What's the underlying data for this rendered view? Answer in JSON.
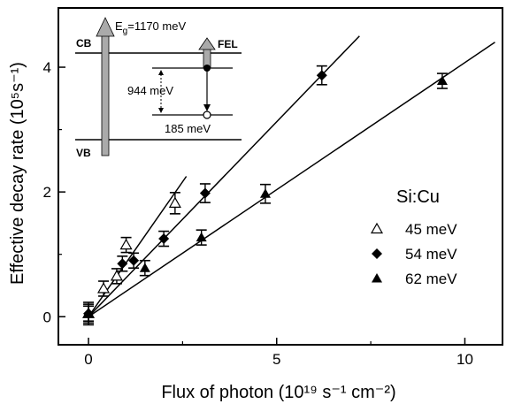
{
  "chart_data": {
    "type": "scatter",
    "xlabel": "Flux of photon (10¹⁹ s⁻¹ cm⁻²)",
    "ylabel": "Effective decay rate (10⁵s⁻¹)",
    "xlim": [
      -0.8,
      11
    ],
    "ylim": [
      -0.45,
      4.95
    ],
    "xticks": [
      0,
      5,
      10
    ],
    "yticks": [
      0,
      2,
      4
    ],
    "legend_title": "Si:Cu",
    "legend_position": "right",
    "series": [
      {
        "name": "45 meV",
        "marker": "triangle-open",
        "x": [
          0.0,
          0.4,
          0.75,
          1.0,
          2.3
        ],
        "y": [
          0.05,
          0.45,
          0.65,
          1.15,
          1.82
        ],
        "err": [
          0.18,
          0.12,
          0.12,
          0.12,
          0.17
        ],
        "fit": {
          "x0": 0,
          "y0": 0.0,
          "x1": 2.6,
          "y1": 2.25
        }
      },
      {
        "name": "54 meV",
        "marker": "diamond-filled",
        "x": [
          0.0,
          0.9,
          1.2,
          2.0,
          3.1,
          6.2
        ],
        "y": [
          0.05,
          0.85,
          0.9,
          1.25,
          1.98,
          3.87
        ],
        "err": [
          0.15,
          0.12,
          0.12,
          0.12,
          0.15,
          0.15
        ],
        "fit": {
          "x0": 0,
          "y0": 0.0,
          "x1": 7.2,
          "y1": 4.5
        }
      },
      {
        "name": "62 meV",
        "marker": "triangle-filled",
        "x": [
          0.0,
          1.5,
          3.0,
          4.7,
          9.4
        ],
        "y": [
          0.05,
          0.78,
          1.27,
          1.97,
          3.78
        ],
        "err": [
          0.12,
          0.12,
          0.12,
          0.15,
          0.12
        ],
        "fit": {
          "x0": 0,
          "y0": 0.0,
          "x1": 10.8,
          "y1": 4.4
        }
      }
    ],
    "inset": {
      "cb_label": "CB",
      "vb_label": "VB",
      "gap_label_main": "E",
      "gap_label_sub": "g",
      "gap_label_value": "=1170 meV",
      "fel_label": "FEL",
      "level1_label": "944 meV",
      "level2_label": "185 meV"
    }
  }
}
